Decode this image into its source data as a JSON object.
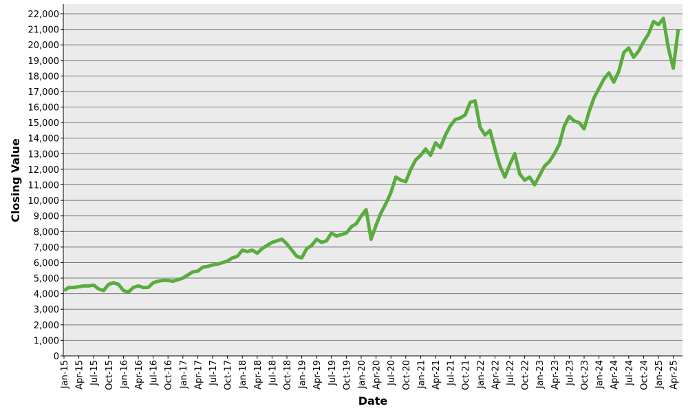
{
  "chart_data": {
    "type": "line",
    "x_label": "Date",
    "y_label": "Closing Value",
    "categories": [
      "Jan-15",
      null,
      null,
      "Apr-15",
      null,
      null,
      "Jul-15",
      null,
      null,
      "Oct-15",
      null,
      null,
      "Jan-16",
      null,
      null,
      "Apr-16",
      null,
      null,
      "Jul-16",
      null,
      null,
      "Oct-16",
      null,
      null,
      "Jan-17",
      null,
      null,
      "Apr-17",
      null,
      null,
      "Jul-17",
      null,
      null,
      "Oct-17",
      null,
      null,
      "Jan-18",
      null,
      null,
      "Apr-18",
      null,
      null,
      "Jul-18",
      null,
      null,
      "Oct-18",
      null,
      null,
      "Jan-19",
      null,
      null,
      "Apr-19",
      null,
      null,
      "Jul-19",
      null,
      null,
      "Oct-19",
      null,
      null,
      "Jan-20",
      null,
      null,
      "Apr-20",
      null,
      null,
      "Jul-20",
      null,
      null,
      "Oct-20",
      null,
      null,
      "Jan-21",
      null,
      null,
      "Apr-21",
      null,
      null,
      "Jul-21",
      null,
      null,
      "Oct-21",
      null,
      null,
      "Jan-22",
      null,
      null,
      "Apr-22",
      null,
      null,
      "Jul-22",
      null,
      null,
      "Oct-22",
      null,
      null,
      "Jan-23",
      null,
      null,
      "Apr-23",
      null,
      null,
      "Jul-23",
      null,
      null,
      "Oct-23",
      null,
      null,
      "Jan-24",
      null,
      null,
      "Apr-24",
      null,
      null,
      "Jul-24",
      null,
      null,
      "Oct-24",
      null,
      null,
      "Jan-25",
      null,
      null,
      "Apr-25",
      null
    ],
    "values": [
      4200,
      4400,
      4400,
      4450,
      4500,
      4500,
      4550,
      4300,
      4200,
      4600,
      4700,
      4600,
      4200,
      4100,
      4400,
      4500,
      4400,
      4400,
      4700,
      4800,
      4850,
      4850,
      4800,
      4900,
      5000,
      5200,
      5400,
      5450,
      5700,
      5750,
      5850,
      5900,
      6000,
      6100,
      6300,
      6400,
      6800,
      6700,
      6800,
      6600,
      6900,
      7100,
      7300,
      7400,
      7500,
      7200,
      6800,
      6400,
      6300,
      6900,
      7100,
      7500,
      7300,
      7400,
      7900,
      7700,
      7800,
      7900,
      8300,
      8500,
      9000,
      9400,
      7500,
      8400,
      9200,
      9800,
      10500,
      11500,
      11300,
      11200,
      12000,
      12600,
      12900,
      13300,
      12900,
      13700,
      13400,
      14200,
      14800,
      15200,
      15300,
      15500,
      16300,
      16400,
      14700,
      14200,
      14500,
      13300,
      12200,
      11500,
      12300,
      13000,
      11700,
      11300,
      11500,
      11000,
      11600,
      12200,
      12500,
      13000,
      13600,
      14800,
      15400,
      15100,
      15000,
      14600,
      15700,
      16600,
      17200,
      17800,
      18200,
      17600,
      18300,
      19500,
      19800,
      19200,
      19600,
      20200,
      20700,
      21500,
      21300,
      21700,
      19800,
      18500,
      21000
    ],
    "color": "#5aac3e",
    "ylim": [
      0,
      22000
    ],
    "yticks": [
      0,
      {
        "value": 1000,
        "label": "1,000"
      },
      {
        "value": 2000,
        "label": "2,000"
      },
      {
        "value": 3000,
        "label": "3,000"
      },
      {
        "value": 4000,
        "label": "4,000"
      },
      {
        "value": 5000,
        "label": "5,000"
      },
      {
        "value": 6000,
        "label": "6,000"
      },
      {
        "value": 7000,
        "label": "7,000"
      },
      {
        "value": 8000,
        "label": "8,000"
      },
      {
        "value": 9000,
        "label": "9,000"
      },
      {
        "value": 10000,
        "label": "10,000"
      },
      {
        "value": 11000,
        "label": "11,000"
      },
      {
        "value": 12000,
        "label": "12,000"
      },
      {
        "value": 13000,
        "label": "13,000"
      },
      {
        "value": 14000,
        "label": "14,000"
      },
      {
        "value": 15000,
        "label": "15,000"
      },
      {
        "value": 16000,
        "label": "16,000"
      },
      {
        "value": 17000,
        "label": "17,000"
      },
      {
        "value": 18000,
        "label": "18,000"
      },
      {
        "value": 19000,
        "label": "19,000"
      },
      {
        "value": 20000,
        "label": "20,000"
      },
      {
        "value": 21000,
        "label": "21,000"
      },
      {
        "value": 22000,
        "label": "22,000"
      }
    ],
    "grid": true
  }
}
